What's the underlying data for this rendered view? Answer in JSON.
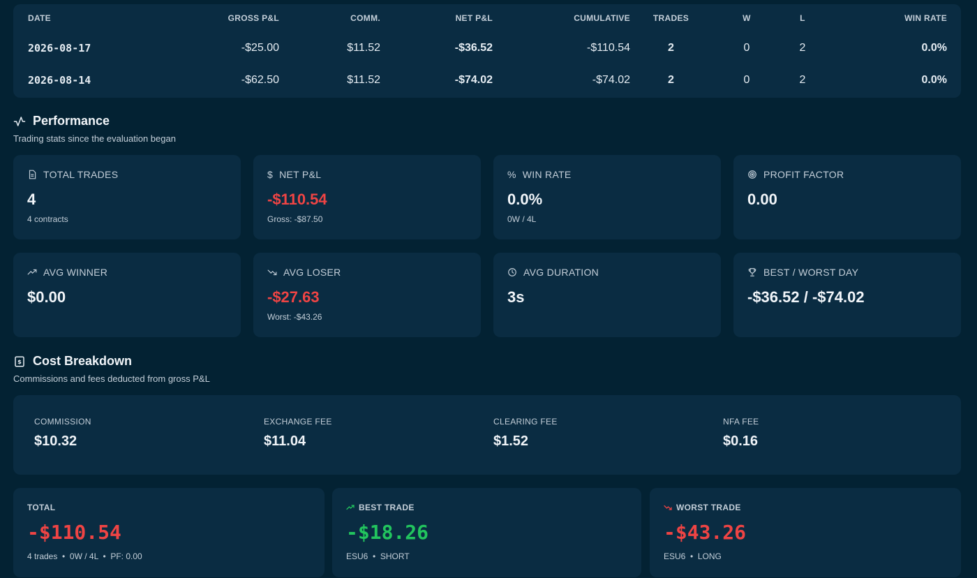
{
  "daily_table": {
    "headers": [
      "DATE",
      "GROSS P&L",
      "COMM.",
      "NET P&L",
      "CUMULATIVE",
      "TRADES",
      "W",
      "L",
      "WIN RATE"
    ],
    "rows": [
      {
        "date": "2026-08-17",
        "gross": "-$25.00",
        "comm": "$11.52",
        "net": "-$36.52",
        "cumulative": "-$110.54",
        "trades": "2",
        "w": "0",
        "l": "2",
        "win_rate": "0.0%"
      },
      {
        "date": "2026-08-14",
        "gross": "-$62.50",
        "comm": "$11.52",
        "net": "-$74.02",
        "cumulative": "-$74.02",
        "trades": "2",
        "w": "0",
        "l": "2",
        "win_rate": "0.0%"
      }
    ]
  },
  "performance": {
    "title": "Performance",
    "subtitle": "Trading stats since the evaluation began",
    "cards": {
      "total_trades": {
        "label": "TOTAL TRADES",
        "value": "4",
        "sub": "4 contracts",
        "icon": "document-icon"
      },
      "net_pnl": {
        "label": "NET P&L",
        "value": "-$110.54",
        "sub": "Gross: -$87.50",
        "icon": "dollar-icon"
      },
      "win_rate": {
        "label": "WIN RATE",
        "value": "0.0%",
        "sub": "0W / 4L",
        "icon": "percent-icon"
      },
      "profit_factor": {
        "label": "PROFIT FACTOR",
        "value": "0.00",
        "icon": "target-icon"
      },
      "avg_winner": {
        "label": "AVG WINNER",
        "value": "$0.00",
        "icon": "trend-up-icon"
      },
      "avg_loser": {
        "label": "AVG LOSER",
        "value": "-$27.63",
        "sub": "Worst: -$43.26",
        "icon": "trend-down-icon"
      },
      "avg_duration": {
        "label": "AVG DURATION",
        "value": "3s",
        "icon": "clock-icon"
      },
      "best_worst_day": {
        "label": "BEST / WORST DAY",
        "value": "-$36.52 / -$74.02",
        "icon": "trophy-icon"
      }
    }
  },
  "cost_breakdown": {
    "title": "Cost Breakdown",
    "subtitle": "Commissions and fees deducted from gross P&L",
    "items": [
      {
        "label": "COMMISSION",
        "value": "$10.32"
      },
      {
        "label": "EXCHANGE FEE",
        "value": "$11.04"
      },
      {
        "label": "CLEARING FEE",
        "value": "$1.52"
      },
      {
        "label": "NFA FEE",
        "value": "$0.16"
      }
    ]
  },
  "summary": {
    "total": {
      "label": "TOTAL",
      "value": "-$110.54",
      "sub": "4 trades  •  0W / 4L  •  PF: 0.00"
    },
    "best_trade": {
      "label": "BEST TRADE",
      "value": "-$18.26",
      "sub": "ESU6  •  SHORT",
      "icon": "trend-up-icon"
    },
    "worst_trade": {
      "label": "WORST TRADE",
      "value": "-$43.26",
      "sub": "ESU6  •  LONG",
      "icon": "trend-down-icon"
    }
  },
  "colors": {
    "background": "#032233",
    "card": "#0a2c42",
    "negative": "#ef4444",
    "positive": "#22c55e"
  }
}
